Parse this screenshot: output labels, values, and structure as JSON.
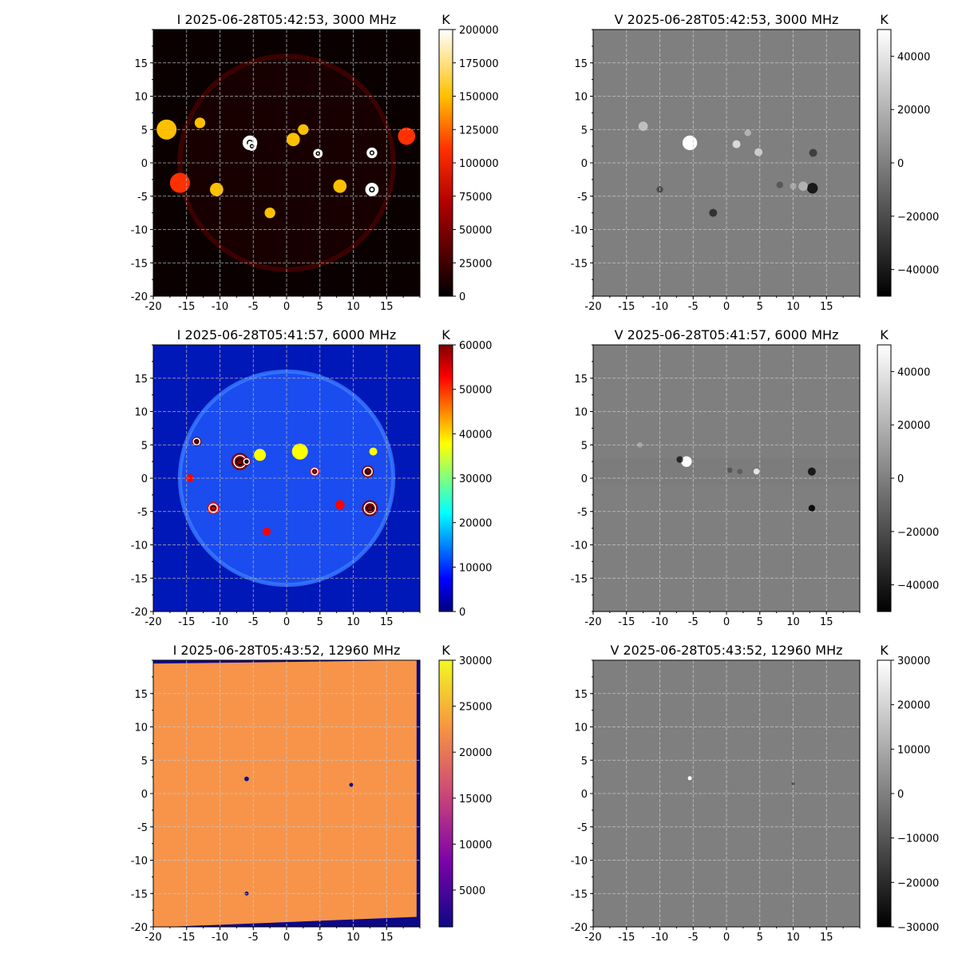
{
  "chart_data": [
    {
      "type": "heatmap",
      "title": "I 2025-06-28T05:42:53, 3000 MHz",
      "colormap": "hot",
      "xlim": [
        -20,
        20
      ],
      "ylim": [
        -20,
        20
      ],
      "xticks": [
        -20,
        -15,
        -10,
        -5,
        0,
        5,
        10,
        15
      ],
      "yticks": [
        -20,
        -15,
        -10,
        -5,
        0,
        5,
        10,
        15
      ],
      "grid": true,
      "colorbar": {
        "unit": "K",
        "range": [
          0,
          200000
        ],
        "ticks": [
          0,
          25000,
          50000,
          75000,
          100000,
          125000,
          150000,
          175000,
          200000
        ]
      },
      "features": [
        {
          "x": -5.5,
          "y": 3,
          "r": 1.1,
          "level": 1.0
        },
        {
          "x": -5.2,
          "y": 2.5,
          "r": 0.7,
          "level": 0.85
        },
        {
          "x": 4.7,
          "y": 1.4,
          "r": 0.7,
          "level": 0.8
        },
        {
          "x": 12.8,
          "y": 1.5,
          "r": 0.8,
          "level": 0.9
        },
        {
          "x": 12.8,
          "y": -4,
          "r": 1.0,
          "level": 1.0
        },
        {
          "x": -13,
          "y": 6,
          "r": 0.8,
          "level": 0.6
        },
        {
          "x": -10.5,
          "y": -4,
          "r": 1.0,
          "level": 0.6
        },
        {
          "x": -2.5,
          "y": -7.5,
          "r": 0.8,
          "level": 0.5
        },
        {
          "x": 2.5,
          "y": 5,
          "r": 0.8,
          "level": 0.55
        },
        {
          "x": 1,
          "y": 3.5,
          "r": 1.0,
          "level": 0.4
        },
        {
          "x": 8,
          "y": -3.5,
          "r": 1.0,
          "level": 0.4
        },
        {
          "x": -18,
          "y": 5,
          "r": 1.5,
          "level": 0.45
        },
        {
          "x": -16,
          "y": -3,
          "r": 1.5,
          "level": 0.35
        },
        {
          "x": 18,
          "y": 4,
          "r": 1.3,
          "level": 0.35
        }
      ]
    },
    {
      "type": "heatmap",
      "title": "V 2025-06-28T05:42:53, 3000 MHz",
      "colormap": "gray",
      "xlim": [
        -20,
        20
      ],
      "ylim": [
        -20,
        20
      ],
      "xticks": [
        -20,
        -15,
        -10,
        -5,
        0,
        5,
        10,
        15
      ],
      "yticks": [
        -15,
        -10,
        -5,
        0,
        5,
        10,
        15
      ],
      "grid": true,
      "colorbar": {
        "unit": "K",
        "range": [
          -50000,
          50000
        ],
        "ticks": [
          -40000,
          -20000,
          0,
          20000,
          40000
        ]
      },
      "features": [
        {
          "x": -5.5,
          "y": 3,
          "r": 1.1,
          "level": 1.0
        },
        {
          "x": -12.5,
          "y": 5.5,
          "r": 0.7,
          "level": 0.5
        },
        {
          "x": 1.5,
          "y": 2.8,
          "r": 0.6,
          "level": 0.7
        },
        {
          "x": 4.8,
          "y": 1.6,
          "r": 0.6,
          "level": 0.6
        },
        {
          "x": 3.2,
          "y": 4.5,
          "r": 0.5,
          "level": 0.4
        },
        {
          "x": 12.9,
          "y": -3.8,
          "r": 0.8,
          "level": -0.8
        },
        {
          "x": 11.5,
          "y": -3.5,
          "r": 0.7,
          "level": 0.4
        },
        {
          "x": 13,
          "y": 1.5,
          "r": 0.6,
          "level": -0.5
        },
        {
          "x": -2,
          "y": -7.5,
          "r": 0.6,
          "level": -0.6
        },
        {
          "x": -10,
          "y": -4,
          "r": 0.5,
          "level": -0.4
        },
        {
          "x": 8,
          "y": -3.3,
          "r": 0.5,
          "level": -0.3
        },
        {
          "x": 10,
          "y": -3.5,
          "r": 0.5,
          "level": 0.3
        }
      ]
    },
    {
      "type": "heatmap",
      "title": "I 2025-06-28T05:41:57, 6000 MHz",
      "colormap": "jet",
      "xlim": [
        -20,
        20
      ],
      "ylim": [
        -20,
        20
      ],
      "xticks": [
        -20,
        -15,
        -10,
        -5,
        0,
        5,
        10,
        15
      ],
      "yticks": [
        -20,
        -15,
        -10,
        -5,
        0,
        5,
        10,
        15
      ],
      "grid": true,
      "colorbar": {
        "unit": "K",
        "range": [
          0,
          60000
        ],
        "ticks": [
          0,
          10000,
          20000,
          30000,
          40000,
          50000,
          60000
        ]
      },
      "features": [
        {
          "x": -7,
          "y": 2.5,
          "r": 1.3,
          "level": 1.0
        },
        {
          "x": -6,
          "y": 2.5,
          "r": 0.6,
          "level": 0.9
        },
        {
          "x": 4.2,
          "y": 1,
          "r": 0.7,
          "level": 0.8
        },
        {
          "x": 12.2,
          "y": 1,
          "r": 0.9,
          "level": 0.9
        },
        {
          "x": 12.5,
          "y": -4.5,
          "r": 1.2,
          "level": 1.0
        },
        {
          "x": -13.5,
          "y": 5.5,
          "r": 0.7,
          "level": 0.9
        },
        {
          "x": -11,
          "y": -4.5,
          "r": 0.9,
          "level": 0.8
        },
        {
          "x": -3,
          "y": -8,
          "r": 0.6,
          "level": 0.7
        },
        {
          "x": -14.5,
          "y": 0,
          "r": 0.6,
          "level": 0.6
        },
        {
          "x": 8,
          "y": -4,
          "r": 0.7,
          "level": 0.55
        },
        {
          "x": 2,
          "y": 4,
          "r": 1.2,
          "level": 0.45
        },
        {
          "x": -4,
          "y": 3.5,
          "r": 0.9,
          "level": 0.4
        },
        {
          "x": 13,
          "y": 4,
          "r": 0.6,
          "level": 0.45
        }
      ]
    },
    {
      "type": "heatmap",
      "title": "V 2025-06-28T05:41:57, 6000 MHz",
      "colormap": "gray",
      "xlim": [
        -20,
        20
      ],
      "ylim": [
        -20,
        20
      ],
      "xticks": [
        -20,
        -15,
        -10,
        -5,
        0,
        5,
        10,
        15
      ],
      "yticks": [
        -15,
        -10,
        -5,
        0,
        5,
        10,
        15
      ],
      "grid": true,
      "colorbar": {
        "unit": "K",
        "range": [
          -50000,
          50000
        ],
        "ticks": [
          -40000,
          -20000,
          0,
          20000,
          40000
        ]
      },
      "features": [
        {
          "x": -6,
          "y": 2.5,
          "r": 0.8,
          "level": 1.0
        },
        {
          "x": -7,
          "y": 2.8,
          "r": 0.5,
          "level": -0.7
        },
        {
          "x": 4.5,
          "y": 1,
          "r": 0.45,
          "level": 0.8
        },
        {
          "x": 12.8,
          "y": 1,
          "r": 0.6,
          "level": -0.8
        },
        {
          "x": 12.8,
          "y": -4.5,
          "r": 0.5,
          "level": -0.9
        },
        {
          "x": -13,
          "y": 5,
          "r": 0.4,
          "level": 0.3
        },
        {
          "x": 0.5,
          "y": 1.2,
          "r": 0.4,
          "level": -0.3
        },
        {
          "x": 2,
          "y": 1,
          "r": 0.4,
          "level": -0.25
        }
      ]
    },
    {
      "type": "heatmap",
      "title": "I 2025-06-28T05:43:52, 12960 MHz",
      "colormap": "plasma",
      "xlim": [
        -20,
        20
      ],
      "ylim": [
        -20,
        20
      ],
      "xticks": [
        -20,
        -15,
        -10,
        -5,
        0,
        5,
        10,
        15
      ],
      "yticks": [
        -20,
        -15,
        -10,
        -5,
        0,
        5,
        10,
        15
      ],
      "grid": true,
      "colorbar": {
        "unit": "K",
        "range": [
          1000,
          30000
        ],
        "ticks": [
          5000,
          10000,
          15000,
          20000,
          25000,
          30000
        ]
      },
      "features": [
        {
          "x": -6,
          "y": 2.2,
          "r": 0.35,
          "level": -1.0
        },
        {
          "x": 9.7,
          "y": 1.3,
          "r": 0.3,
          "level": -0.5
        },
        {
          "x": -6,
          "y": -15,
          "r": 0.3,
          "level": -0.4
        }
      ]
    },
    {
      "type": "heatmap",
      "title": "V 2025-06-28T05:43:52, 12960 MHz",
      "colormap": "gray",
      "xlim": [
        -20,
        20
      ],
      "ylim": [
        -20,
        20
      ],
      "xticks": [
        -20,
        -15,
        -10,
        -5,
        0,
        5,
        10,
        15
      ],
      "yticks": [
        -20,
        -15,
        -10,
        -5,
        0,
        5,
        10,
        15
      ],
      "grid": true,
      "colorbar": {
        "unit": "K",
        "range": [
          -30000,
          30000
        ],
        "ticks": [
          -30000,
          -20000,
          -10000,
          0,
          10000,
          20000,
          30000
        ]
      },
      "features": [
        {
          "x": -5.5,
          "y": 2.3,
          "r": 0.3,
          "level": 1.0
        },
        {
          "x": 10,
          "y": 1.5,
          "r": 0.25,
          "level": -0.4
        }
      ]
    }
  ]
}
